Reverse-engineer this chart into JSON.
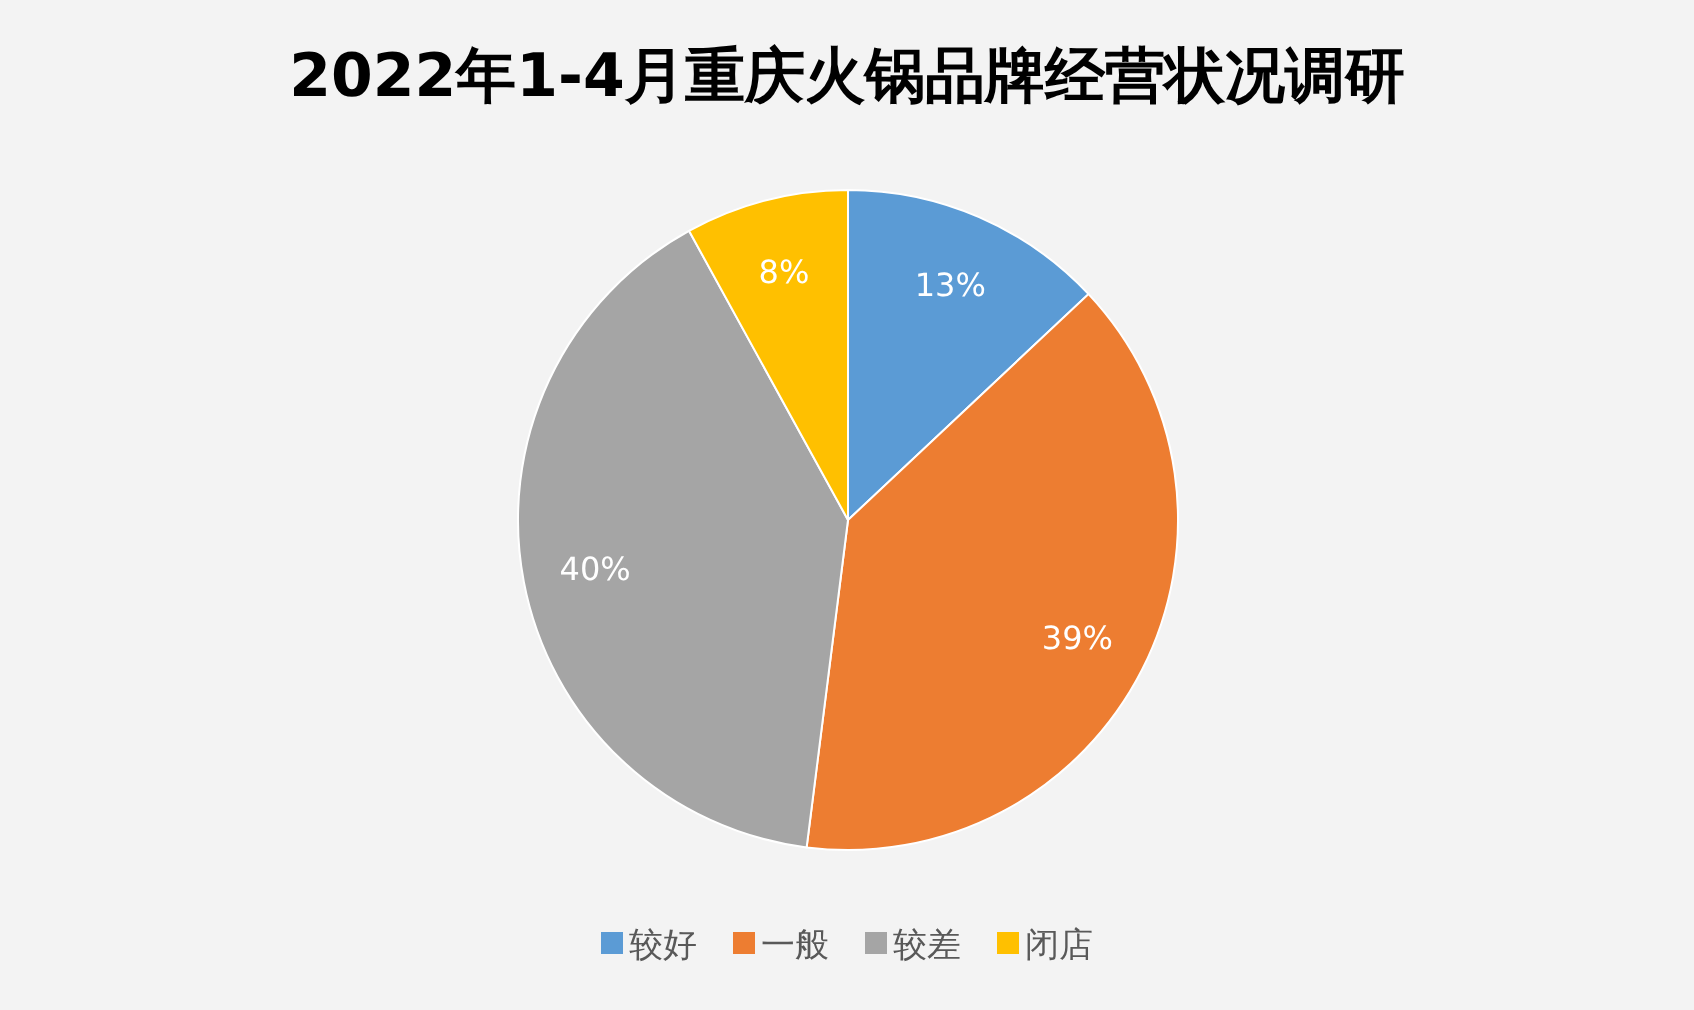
{
  "chart_data": {
    "type": "pie",
    "title": "2022年1-4月重庆火锅品牌经营状况调研",
    "categories": [
      "较好",
      "一般",
      "较差",
      "闭店"
    ],
    "values": [
      13,
      39,
      40,
      8
    ],
    "value_labels": [
      "13%",
      "39%",
      "40%",
      "8%"
    ],
    "colors": [
      "#5b9bd5",
      "#ed7d31",
      "#a5a5a5",
      "#ffc000"
    ],
    "legend": "bottom"
  }
}
